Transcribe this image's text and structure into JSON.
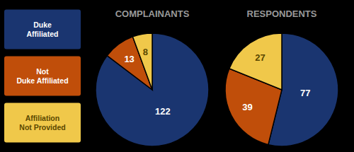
{
  "chart_data": [
    {
      "type": "pie",
      "title": "COMPLAINANTS",
      "categories": [
        "Duke\nAffiliated",
        "Not\nDuke Affiliated",
        "Affiliation\nNot Provided"
      ],
      "values": [
        122,
        13,
        8
      ],
      "colors": [
        "#1a3570",
        "#c04e0a",
        "#f0c84a"
      ],
      "data_labels": true
    },
    {
      "type": "pie",
      "title": "RESPONDENTS",
      "values": [
        77,
        39,
        27
      ],
      "colors": [
        "#1a3570",
        "#c04e0a",
        "#f0c84a"
      ],
      "data_labels": true
    }
  ]
}
